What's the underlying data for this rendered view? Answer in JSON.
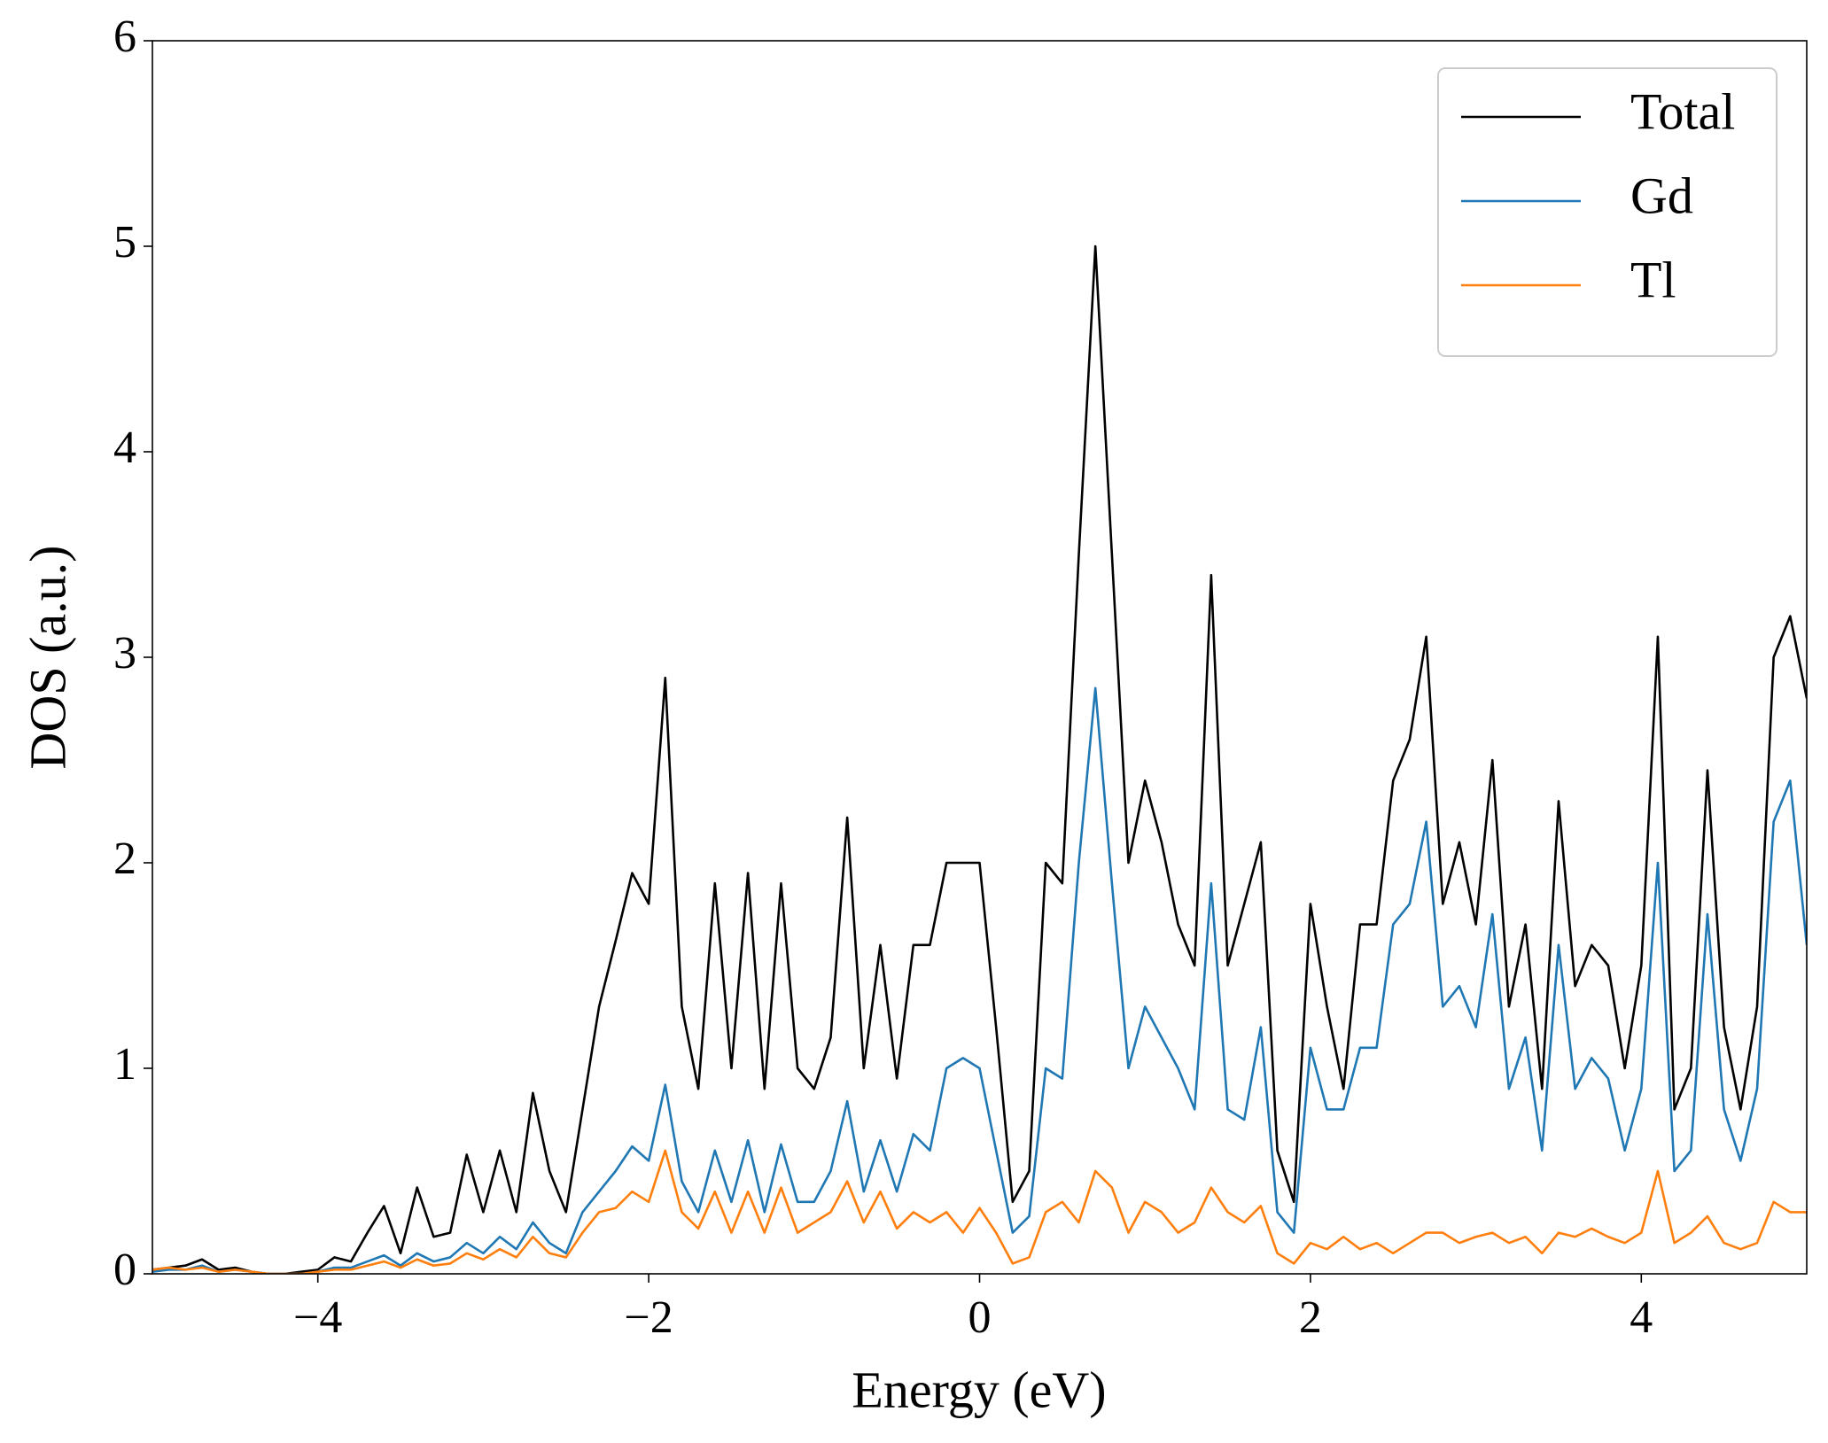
{
  "chart_data": {
    "type": "line",
    "xlabel": "Energy (eV)",
    "ylabel": "DOS (a.u.)",
    "xlim": [
      -5,
      5
    ],
    "ylim": [
      0,
      6
    ],
    "xticks": [
      {
        "value": -4,
        "label": "−4"
      },
      {
        "value": -2,
        "label": "−2"
      },
      0,
      2,
      4
    ],
    "yticks": [
      0,
      1,
      2,
      3,
      4,
      5,
      6
    ],
    "legend": "upper right",
    "x": [
      -5,
      -4.9,
      -4.8,
      -4.7,
      -4.6,
      -4.5,
      -4.4,
      -4.3,
      -4.2,
      -4.1,
      -4,
      -3.9,
      -3.8,
      -3.7,
      -3.6,
      -3.5,
      -3.4,
      -3.3,
      -3.2,
      -3.1,
      -3,
      -2.9,
      -2.8,
      -2.7,
      -2.6,
      -2.5,
      -2.4,
      -2.3,
      -2.2,
      -2.1,
      -2,
      -1.9,
      -1.8,
      -1.7,
      -1.6,
      -1.5,
      -1.4,
      -1.3,
      -1.2,
      -1.1,
      -1,
      -0.9,
      -0.8,
      -0.7,
      -0.6,
      -0.5,
      -0.4,
      -0.3,
      -0.2,
      -0.1,
      0,
      0.1,
      0.2,
      0.3,
      0.4,
      0.5,
      0.6,
      0.7,
      0.8,
      0.9,
      1,
      1.1,
      1.2,
      1.3,
      1.4,
      1.5,
      1.6,
      1.7,
      1.8,
      1.9,
      2,
      2.1,
      2.2,
      2.3,
      2.4,
      2.5,
      2.6,
      2.7,
      2.8,
      2.9,
      3,
      3.1,
      3.2,
      3.3,
      3.4,
      3.5,
      3.6,
      3.7,
      3.8,
      3.9,
      4,
      4.1,
      4.2,
      4.3,
      4.4,
      4.5,
      4.6,
      4.7,
      4.8,
      4.9,
      5
    ],
    "series": [
      {
        "name": "Total",
        "color": "#000000",
        "values": [
          0.02,
          0.03,
          0.04,
          0.07,
          0.02,
          0.03,
          0.01,
          0,
          0,
          0.01,
          0.02,
          0.08,
          0.06,
          0.2,
          0.33,
          0.1,
          0.42,
          0.18,
          0.2,
          0.58,
          0.3,
          0.6,
          0.3,
          0.88,
          0.5,
          0.3,
          0.8,
          1.3,
          1.62,
          1.95,
          1.8,
          2.9,
          1.3,
          0.9,
          1.9,
          1.0,
          1.95,
          0.9,
          1.9,
          1.0,
          0.9,
          1.15,
          2.22,
          1.0,
          1.6,
          0.95,
          1.6,
          1.6,
          2.0,
          2.0,
          2.0,
          1.2,
          0.35,
          0.5,
          2.0,
          1.9,
          3.5,
          5.0,
          3.5,
          2.0,
          2.4,
          2.1,
          1.7,
          1.5,
          3.4,
          1.5,
          1.8,
          2.1,
          0.6,
          0.35,
          1.8,
          1.3,
          0.9,
          1.7,
          1.7,
          2.4,
          2.6,
          3.1,
          1.8,
          2.1,
          1.7,
          2.5,
          1.3,
          1.7,
          0.9,
          2.3,
          1.4,
          1.6,
          1.5,
          1.0,
          1.5,
          3.1,
          0.8,
          1.0,
          2.45,
          1.2,
          0.8,
          1.3,
          3.0,
          3.2,
          2.8
        ]
      },
      {
        "name": "Gd",
        "color": "#1f77b4",
        "values": [
          0.01,
          0.02,
          0.02,
          0.04,
          0.01,
          0.02,
          0.01,
          0,
          0,
          0,
          0.01,
          0.03,
          0.03,
          0.06,
          0.09,
          0.04,
          0.1,
          0.06,
          0.08,
          0.15,
          0.1,
          0.18,
          0.12,
          0.25,
          0.15,
          0.1,
          0.3,
          0.4,
          0.5,
          0.62,
          0.55,
          0.92,
          0.45,
          0.3,
          0.6,
          0.35,
          0.65,
          0.3,
          0.63,
          0.35,
          0.35,
          0.5,
          0.84,
          0.4,
          0.65,
          0.4,
          0.68,
          0.6,
          1.0,
          1.05,
          1.0,
          0.6,
          0.2,
          0.28,
          1.0,
          0.95,
          2.0,
          2.85,
          1.9,
          1.0,
          1.3,
          1.15,
          1.0,
          0.8,
          1.9,
          0.8,
          0.75,
          1.2,
          0.3,
          0.2,
          1.1,
          0.8,
          0.8,
          1.1,
          1.1,
          1.7,
          1.8,
          2.2,
          1.3,
          1.4,
          1.2,
          1.75,
          0.9,
          1.15,
          0.6,
          1.6,
          0.9,
          1.05,
          0.95,
          0.6,
          0.9,
          2.0,
          0.5,
          0.6,
          1.75,
          0.8,
          0.55,
          0.9,
          2.2,
          2.4,
          1.6
        ]
      },
      {
        "name": "Tl",
        "color": "#ff7f0e",
        "values": [
          0.02,
          0.03,
          0.02,
          0.03,
          0.01,
          0.02,
          0.01,
          0,
          0,
          0,
          0.01,
          0.02,
          0.02,
          0.04,
          0.06,
          0.03,
          0.07,
          0.04,
          0.05,
          0.1,
          0.07,
          0.12,
          0.08,
          0.18,
          0.1,
          0.08,
          0.2,
          0.3,
          0.32,
          0.4,
          0.35,
          0.6,
          0.3,
          0.22,
          0.4,
          0.2,
          0.4,
          0.2,
          0.42,
          0.2,
          0.25,
          0.3,
          0.45,
          0.25,
          0.4,
          0.22,
          0.3,
          0.25,
          0.3,
          0.2,
          0.32,
          0.2,
          0.05,
          0.08,
          0.3,
          0.35,
          0.25,
          0.5,
          0.42,
          0.2,
          0.35,
          0.3,
          0.2,
          0.25,
          0.42,
          0.3,
          0.25,
          0.33,
          0.1,
          0.05,
          0.15,
          0.12,
          0.18,
          0.12,
          0.15,
          0.1,
          0.15,
          0.2,
          0.2,
          0.15,
          0.18,
          0.2,
          0.15,
          0.18,
          0.1,
          0.2,
          0.18,
          0.22,
          0.18,
          0.15,
          0.2,
          0.5,
          0.15,
          0.2,
          0.28,
          0.15,
          0.12,
          0.15,
          0.35,
          0.3,
          0.3
        ]
      }
    ]
  }
}
